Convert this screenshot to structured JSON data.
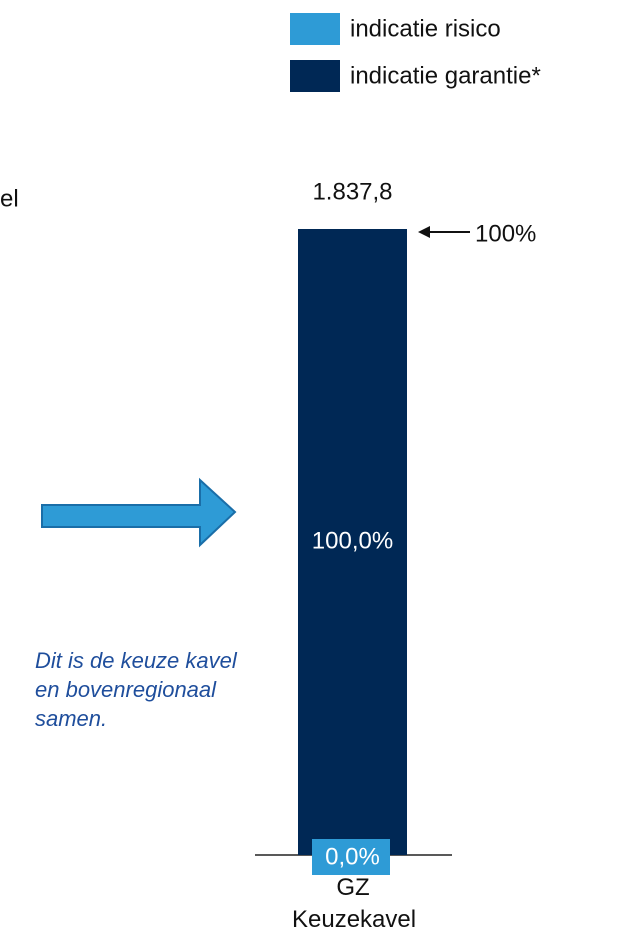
{
  "chart_data": {
    "type": "stacked_bar",
    "categories": [
      "GZ Keuzekavel"
    ],
    "series": [
      {
        "name": "indicatie risico",
        "color": "#2e9bd6",
        "values": [
          0
        ],
        "value_labels": [
          "0,0%"
        ]
      },
      {
        "name": "indicatie garantie*",
        "color": "#002855",
        "values": [
          100
        ],
        "value_labels": [
          "100,0%"
        ]
      }
    ],
    "total_label": "1.837,8",
    "annotations": [
      "100%",
      "el",
      "Dit is de keuze kavel en bovenregionaal samen."
    ]
  }
}
